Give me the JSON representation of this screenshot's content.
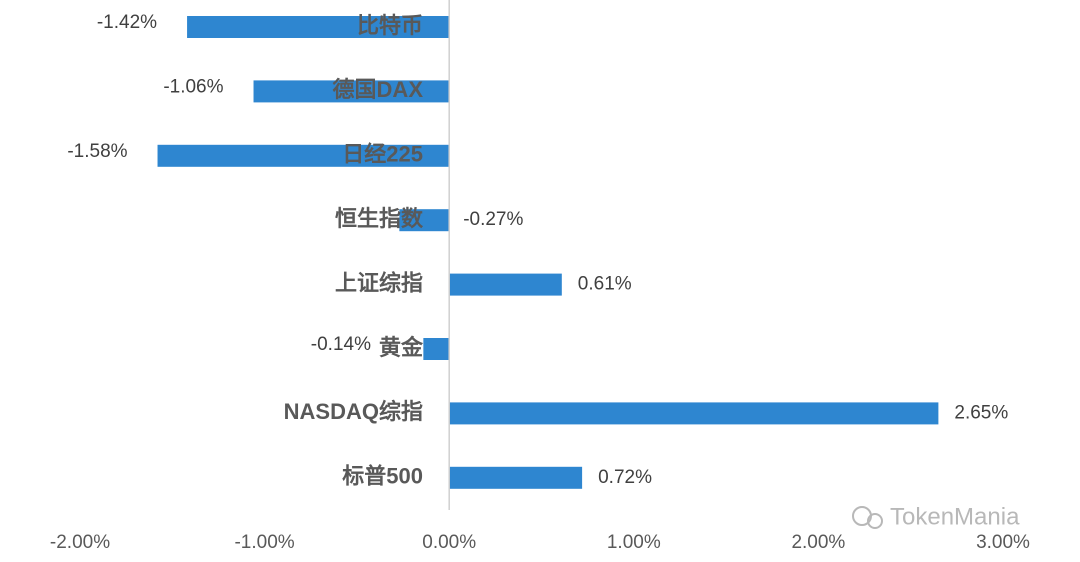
{
  "chart_data": {
    "type": "barh",
    "categories": [
      "比特币",
      "德国DAX",
      "日经225",
      "恒生指数",
      "上证综指",
      "黄金",
      "NASDAQ综指",
      "标普500"
    ],
    "values": [
      -1.42,
      -1.06,
      -1.58,
      -0.27,
      0.61,
      -0.14,
      2.65,
      0.72
    ],
    "value_labels": [
      "-1.42%",
      "-1.06%",
      "-1.58%",
      "-0.27%",
      "0.61%",
      "-0.14%",
      "2.65%",
      "0.72%"
    ],
    "color": "#2e86d0",
    "xlim": [
      -2,
      3
    ],
    "xticks": [
      {
        "value": -2,
        "label": "-2.00%"
      },
      {
        "value": -1,
        "label": "-1.00%"
      },
      {
        "value": 0,
        "label": "0.00%"
      },
      {
        "value": 1,
        "label": "1.00%"
      },
      {
        "value": 2,
        "label": "2.00%"
      },
      {
        "value": 3,
        "label": "3.00%"
      }
    ],
    "grid": false,
    "watermark": "TokenMania"
  }
}
